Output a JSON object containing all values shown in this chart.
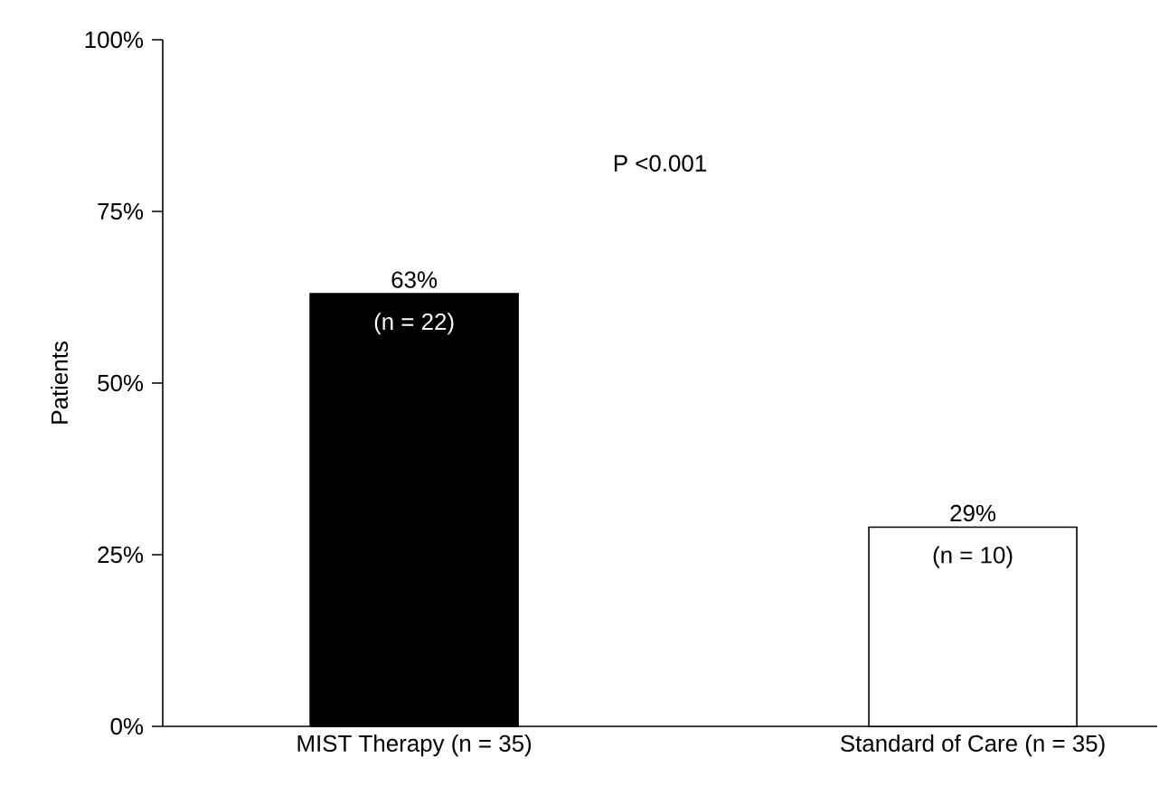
{
  "chart_data": {
    "type": "bar",
    "ylabel": "Patients",
    "categories": [
      "MIST Therapy (n = 35)",
      "Standard of Care (n = 35)"
    ],
    "values": [
      63,
      29
    ],
    "colors": [
      "#000000",
      "#ffffff"
    ],
    "value_labels": [
      "63%",
      "29%"
    ],
    "ylim": [
      0,
      100
    ],
    "yticks": [
      {
        "value": 0,
        "label": "0%"
      },
      {
        "value": 25,
        "label": "25%"
      },
      {
        "value": 50,
        "label": "50%"
      },
      {
        "value": 75,
        "label": "75%"
      },
      {
        "value": 100,
        "label": "100%"
      }
    ],
    "annotations": [
      "P <0.001",
      "(n = 22)",
      "(n = 10)"
    ],
    "grid": false
  }
}
